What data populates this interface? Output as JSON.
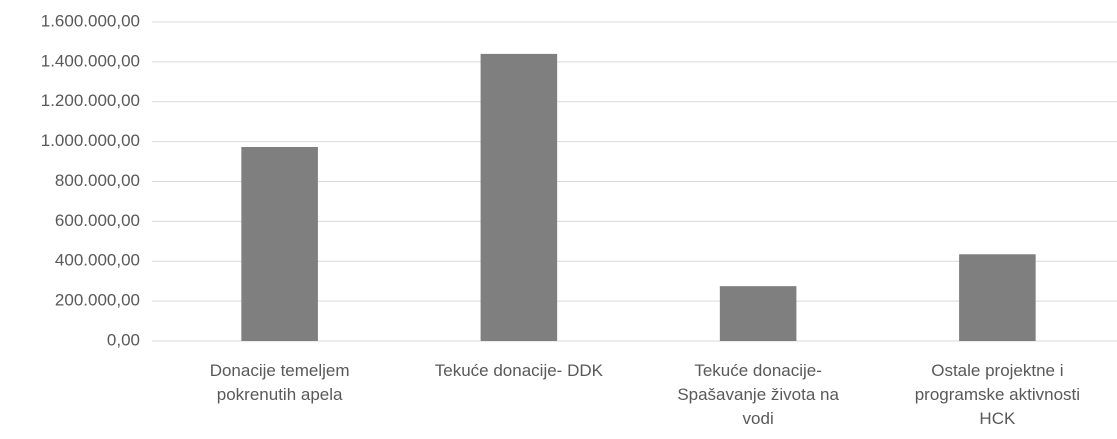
{
  "chart_data": {
    "type": "bar",
    "categories": [
      "Donacije temeljem pokrenutih apela",
      "Tekuće donacije- DDK",
      "Tekuće donacije- Spašavanje života na vodi",
      "Ostale projektne i programske aktivnosti HCK"
    ],
    "values": [
      973000,
      1440000,
      275000,
      435000
    ],
    "color": "#7f7f7f",
    "ylim": [
      0,
      1600000
    ],
    "yticks": [
      {
        "value": 0,
        "label": "0,00"
      },
      {
        "value": 200000,
        "label": "200.000,00"
      },
      {
        "value": 400000,
        "label": "400.000,00"
      },
      {
        "value": 600000,
        "label": "600.000,00"
      },
      {
        "value": 800000,
        "label": "800.000,00"
      },
      {
        "value": 1000000,
        "label": "1.000.000,00"
      },
      {
        "value": 1200000,
        "label": "1.200.000,00"
      },
      {
        "value": 1400000,
        "label": "1.400.000,00"
      },
      {
        "value": 1600000,
        "label": "1.600.000,00"
      }
    ],
    "grid": true
  }
}
